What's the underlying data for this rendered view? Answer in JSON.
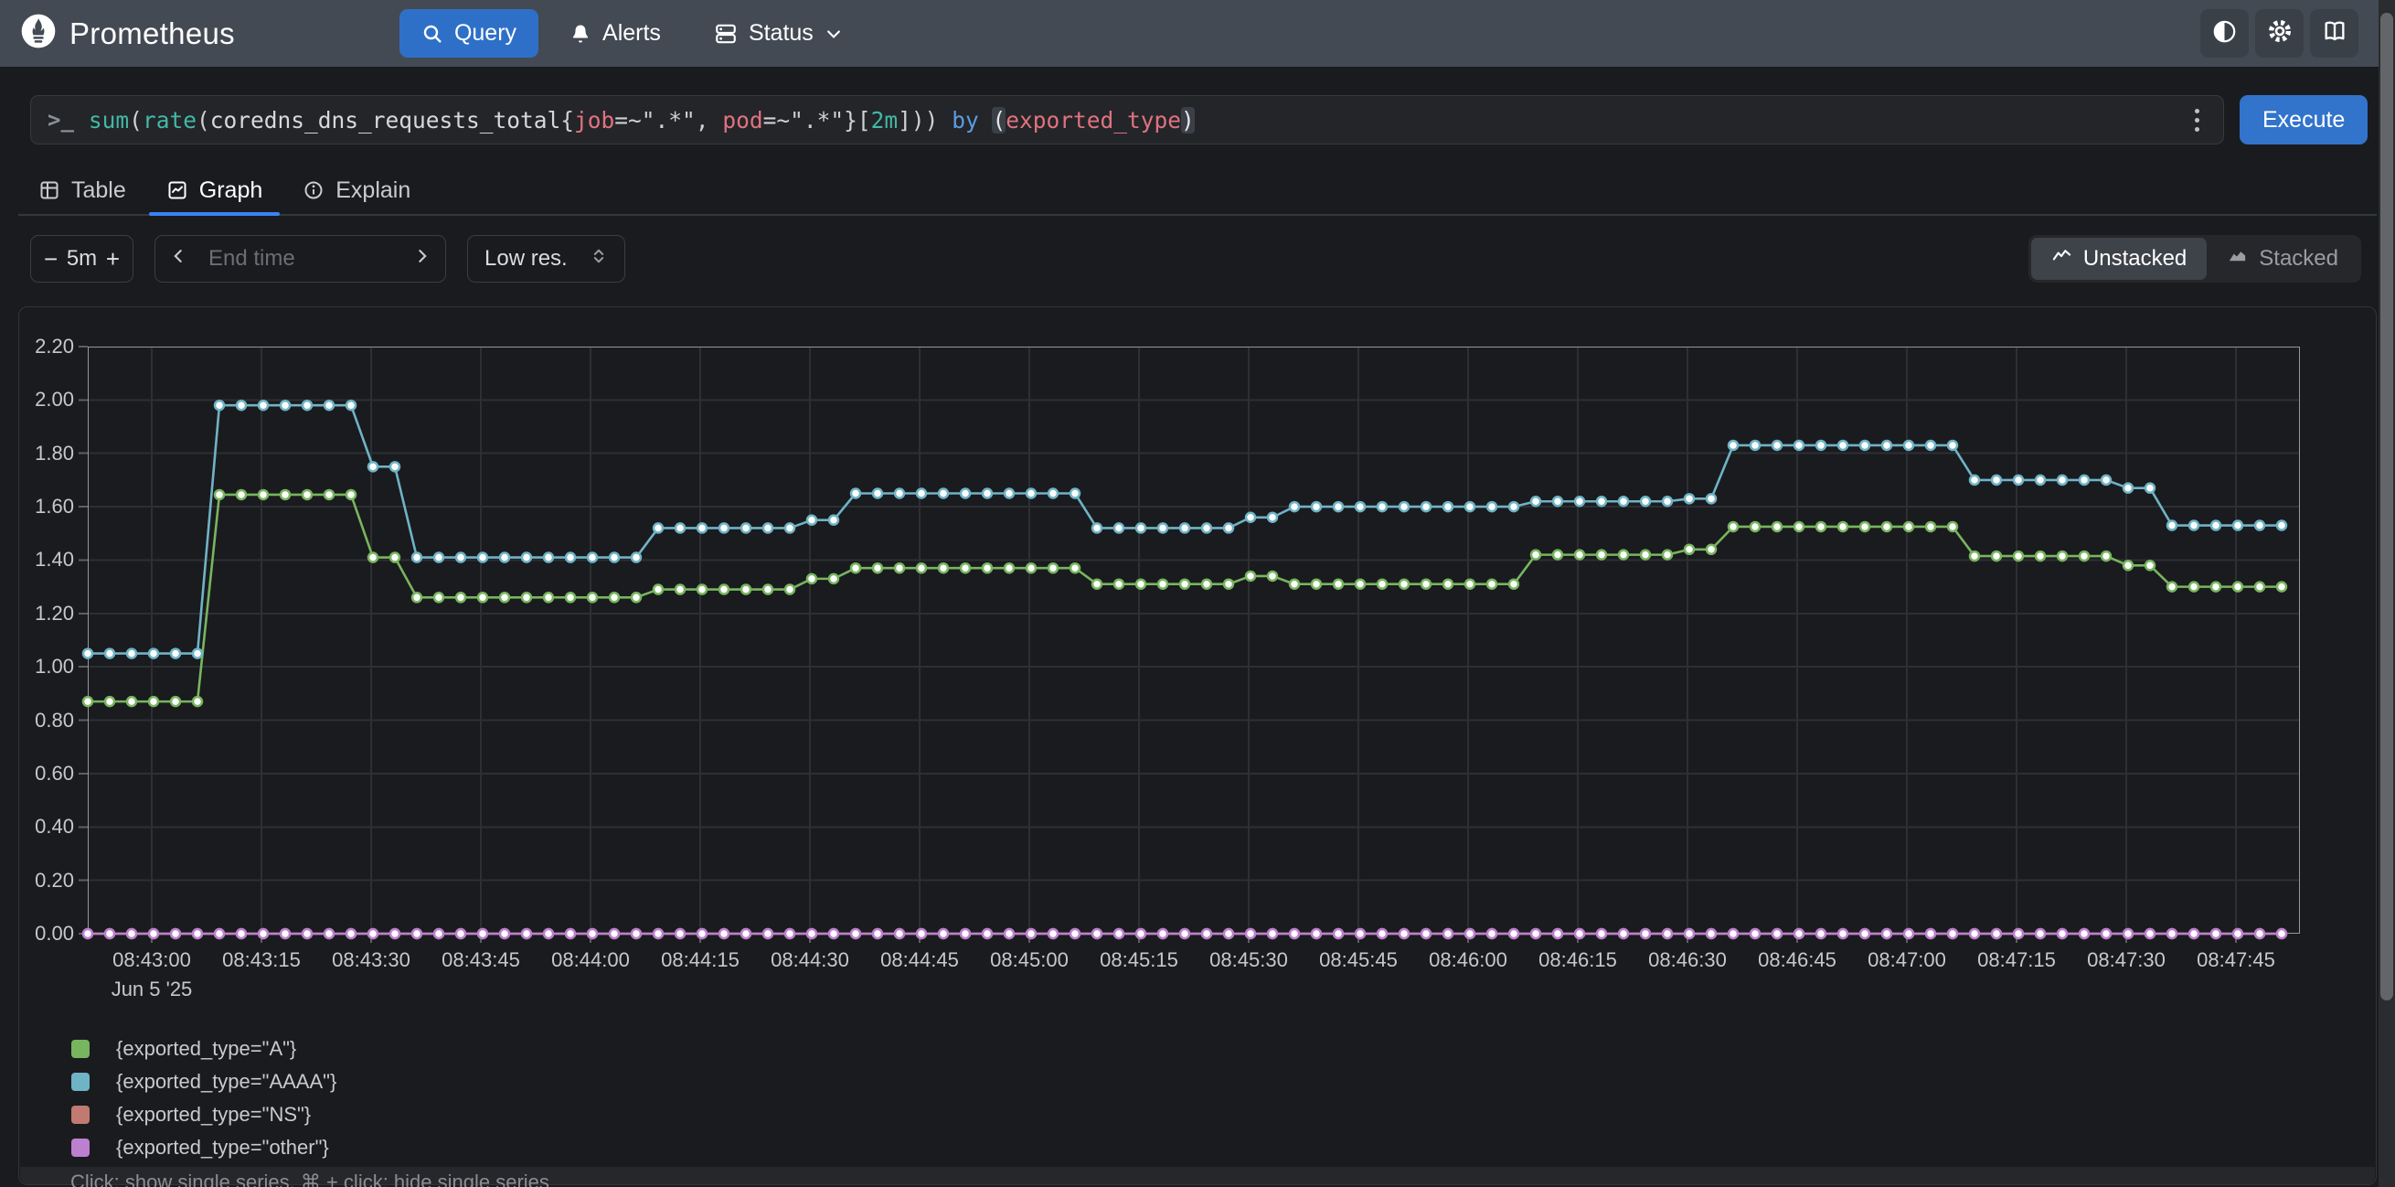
{
  "navbar": {
    "brand": "Prometheus",
    "items": [
      {
        "label": "Query",
        "active": true
      },
      {
        "label": "Alerts",
        "active": false
      },
      {
        "label": "Status",
        "active": false,
        "has_dropdown": true
      }
    ],
    "icon_buttons": [
      "theme-toggle",
      "settings",
      "documentation"
    ]
  },
  "query_panel": {
    "tokens": [
      [
        "sum",
        "fn"
      ],
      [
        "(",
        "p"
      ],
      [
        "rate",
        "fn"
      ],
      [
        "(",
        "p"
      ],
      [
        "coredns_dns_requests_total",
        "metric"
      ],
      [
        "{",
        "p"
      ],
      [
        "job",
        "label"
      ],
      [
        "=~",
        "op"
      ],
      [
        "\".*\"",
        "str"
      ],
      [
        ", ",
        "p"
      ],
      [
        "pod",
        "label"
      ],
      [
        "=~",
        "op"
      ],
      [
        "\".*\"",
        "str"
      ],
      [
        "}",
        "p"
      ],
      [
        "[",
        "p"
      ],
      [
        "2m",
        "dur"
      ],
      [
        "]",
        "p"
      ],
      [
        "))",
        "p"
      ],
      [
        " ",
        "p"
      ],
      [
        "by",
        "kw"
      ],
      [
        " ",
        "p"
      ],
      [
        "(",
        "pm"
      ],
      [
        "exported_type",
        "label"
      ],
      [
        ")",
        "pm"
      ]
    ],
    "execute_label": "Execute"
  },
  "tabs": [
    {
      "label": "Table",
      "active": false
    },
    {
      "label": "Graph",
      "active": true
    },
    {
      "label": "Explain",
      "active": false
    }
  ],
  "controls": {
    "range_decrease": "−",
    "range_value": "5m",
    "range_increase": "+",
    "end_time_placeholder": "End time",
    "resolution_value": "Low res.",
    "display_modes": [
      {
        "label": "Unstacked",
        "active": true
      },
      {
        "label": "Stacked",
        "active": false
      }
    ]
  },
  "chart_data": {
    "type": "line",
    "title": "",
    "grid": true,
    "legend_position": "bottom-left",
    "x_axis": {
      "first_point_time": "08:42:51",
      "point_interval_seconds": 3,
      "tick_labels": [
        "08:43:00",
        "08:43:15",
        "08:43:30",
        "08:43:45",
        "08:44:00",
        "08:44:15",
        "08:44:30",
        "08:44:45",
        "08:45:00",
        "08:45:15",
        "08:45:30",
        "08:45:45",
        "08:46:00",
        "08:46:15",
        "08:46:30",
        "08:46:45",
        "08:47:00",
        "08:47:15",
        "08:47:30",
        "08:47:45"
      ],
      "date_label": "Jun 5 '25"
    },
    "y_axis": {
      "min": 0,
      "max": 2.2,
      "tick_labels": [
        "0.00",
        "0.20",
        "0.40",
        "0.60",
        "0.80",
        "1.00",
        "1.20",
        "1.40",
        "1.60",
        "1.80",
        "2.00",
        "2.20"
      ]
    },
    "series": [
      {
        "name": "{exported_type=\"A\"}",
        "color": "#78b55f",
        "levels_rle": [
          [
            6,
            0.87
          ],
          [
            7,
            1.645
          ],
          [
            2,
            1.41
          ],
          [
            11,
            1.26
          ],
          [
            7,
            1.29
          ],
          [
            2,
            1.33
          ],
          [
            11,
            1.37
          ],
          [
            7,
            1.31
          ],
          [
            2,
            1.34
          ],
          [
            11,
            1.31
          ],
          [
            7,
            1.42
          ],
          [
            2,
            1.44
          ],
          [
            11,
            1.525
          ],
          [
            7,
            1.415
          ],
          [
            2,
            1.38
          ],
          [
            6,
            1.3
          ]
        ]
      },
      {
        "name": "{exported_type=\"AAAA\"}",
        "color": "#6fb3c6",
        "levels_rle": [
          [
            6,
            1.05
          ],
          [
            7,
            1.98
          ],
          [
            2,
            1.75
          ],
          [
            11,
            1.41
          ],
          [
            7,
            1.52
          ],
          [
            2,
            1.55
          ],
          [
            11,
            1.65
          ],
          [
            7,
            1.52
          ],
          [
            2,
            1.56
          ],
          [
            11,
            1.6
          ],
          [
            7,
            1.62
          ],
          [
            2,
            1.63
          ],
          [
            11,
            1.83
          ],
          [
            7,
            1.7
          ],
          [
            2,
            1.67
          ],
          [
            6,
            1.53
          ]
        ]
      },
      {
        "name": "{exported_type=\"NS\"}",
        "color": "#c07a71",
        "levels_rle": [
          [
            101,
            0
          ]
        ]
      },
      {
        "name": "{exported_type=\"other\"}",
        "color": "#bd7fd0",
        "levels_rle": [
          [
            101,
            0
          ]
        ]
      }
    ]
  },
  "footer_hint": "Click: show single series, ⌘ + click: hide single series"
}
